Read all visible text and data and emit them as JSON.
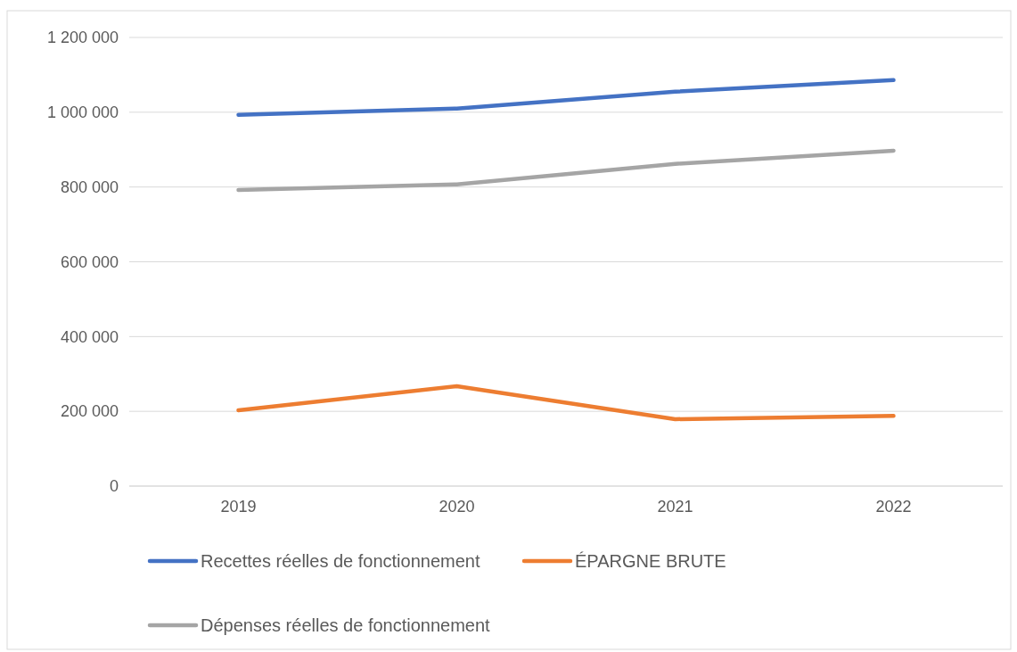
{
  "chart_data": {
    "type": "line",
    "categories": [
      "2019",
      "2020",
      "2021",
      "2022"
    ],
    "series": [
      {
        "name": "Recettes réelles de fonctionnement",
        "color": "#4472c4",
        "values": [
          993000,
          1010000,
          1055000,
          1086000
        ]
      },
      {
        "name": "ÉPARGNE BRUTE",
        "color": "#ed7d31",
        "values": [
          203000,
          267000,
          179000,
          188000
        ]
      },
      {
        "name": "Dépenses réelles de fonctionnement",
        "color": "#a5a5a5",
        "values": [
          792000,
          807000,
          862000,
          897000
        ]
      }
    ],
    "ylim": [
      0,
      1200000
    ],
    "yticks": [
      0,
      {
        "value": 200000,
        "label": "200 000"
      },
      {
        "value": 400000,
        "label": "400 000"
      },
      {
        "value": 600000,
        "label": "600 000"
      },
      {
        "value": 800000,
        "label": "800 000"
      },
      {
        "value": 1000000,
        "label": "1 000 000"
      },
      {
        "value": 1200000,
        "label": "1 200 000"
      }
    ],
    "grid": "y",
    "legend": "bottom",
    "marker": "none",
    "line_style": "solid"
  }
}
